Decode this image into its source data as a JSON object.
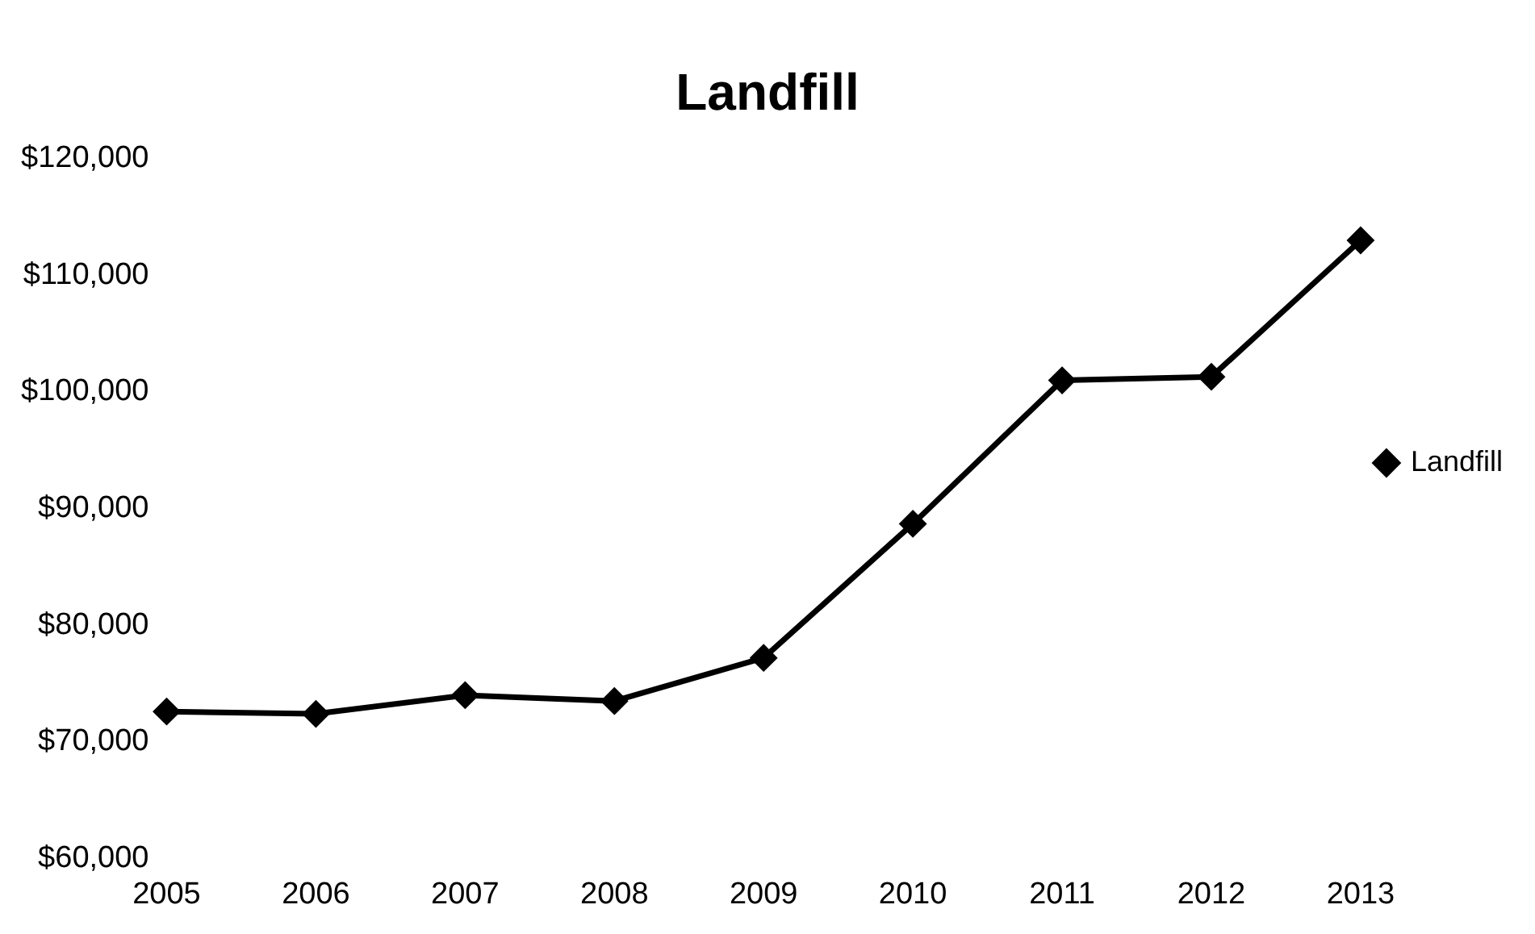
{
  "chart_data": {
    "type": "line",
    "title": "Landfill",
    "categories": [
      "2005",
      "2006",
      "2007",
      "2008",
      "2009",
      "2010",
      "2011",
      "2012",
      "2013"
    ],
    "series": [
      {
        "name": "Landfill",
        "color": "#000000",
        "values": [
          72600,
          72400,
          74000,
          73500,
          77200,
          88700,
          101000,
          101300,
          113000
        ]
      }
    ],
    "ylim": [
      60000,
      120000
    ],
    "yticks": [
      {
        "value": 60000,
        "label": "$60,000"
      },
      {
        "value": 70000,
        "label": "$70,000"
      },
      {
        "value": 80000,
        "label": "$80,000"
      },
      {
        "value": 90000,
        "label": "$90,000"
      },
      {
        "value": 100000,
        "label": "$100,000"
      },
      {
        "value": 110000,
        "label": "$110,000"
      },
      {
        "value": 120000,
        "label": "$120,000"
      }
    ],
    "grid": false,
    "legend": "right",
    "marker": "diamond",
    "line_style": "solid"
  }
}
